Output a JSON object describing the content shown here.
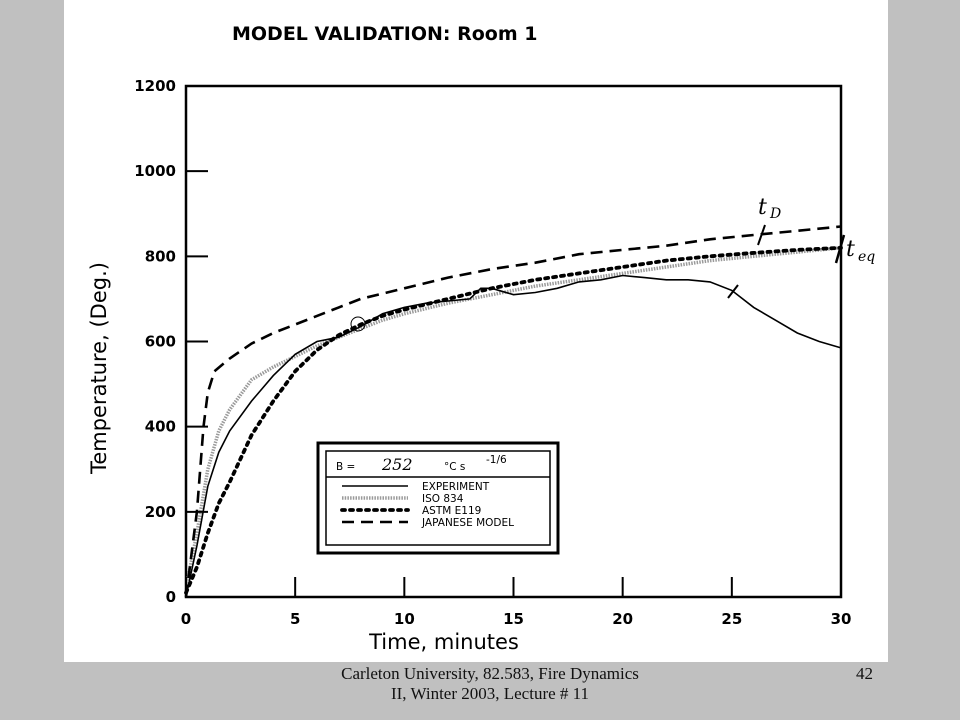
{
  "slide": {
    "footer": "Carleton University, 82.583, Fire Dynamics II, Winter 2003, Lecture # 11",
    "page_number": "42"
  },
  "chart_data": {
    "type": "line",
    "title": "MODEL VALIDATION:  Room 1",
    "xlabel": "Time, minutes",
    "ylabel": "Temperature, (Deg.)",
    "xlim": [
      0,
      30
    ],
    "ylim": [
      0,
      1200
    ],
    "xticks": [
      0,
      5,
      10,
      15,
      20,
      25,
      30
    ],
    "yticks": [
      0,
      200,
      400,
      600,
      800,
      1000,
      1200
    ],
    "grid": false,
    "legend_position": "lower-right",
    "legend_header": {
      "b_label": "B =",
      "b_value": "252",
      "b_unit": "°C s",
      "b_exponent": "-1/6"
    },
    "annotations": {
      "t_d": "t",
      "t_d_sub": "D",
      "t_eq": "t",
      "t_eq_sub": "eq"
    },
    "series": [
      {
        "name": "EXPERIMENT",
        "style": "solid",
        "x": [
          0,
          0.5,
          1,
          1.5,
          2,
          3,
          4,
          5,
          6,
          7,
          8,
          9,
          10,
          11,
          12,
          13,
          13.5,
          14,
          15,
          16,
          17,
          18,
          19,
          20,
          21,
          22,
          23,
          24,
          25,
          26,
          27,
          28,
          29,
          30
        ],
        "y": [
          0,
          120,
          260,
          340,
          390,
          460,
          520,
          570,
          600,
          610,
          635,
          665,
          680,
          690,
          695,
          700,
          725,
          725,
          710,
          715,
          725,
          740,
          745,
          755,
          750,
          745,
          745,
          740,
          720,
          680,
          650,
          620,
          600,
          585
        ]
      },
      {
        "name": "ISO 834",
        "style": "dotted-gray",
        "x": [
          0,
          0.5,
          1,
          1.5,
          2,
          3,
          4,
          5,
          6,
          7,
          8,
          9,
          10,
          12,
          14,
          16,
          18,
          20,
          22,
          24,
          26,
          28,
          30
        ],
        "y": [
          20,
          150,
          300,
          390,
          440,
          510,
          540,
          565,
          590,
          610,
          630,
          650,
          665,
          690,
          710,
          730,
          745,
          760,
          775,
          790,
          800,
          810,
          820
        ]
      },
      {
        "name": "ASTM E119",
        "style": "dotted-bold",
        "x": [
          0,
          0.5,
          1,
          1.5,
          2,
          3,
          4,
          5,
          6,
          7,
          8,
          9,
          10,
          12,
          14,
          16,
          18,
          20,
          22,
          24,
          26,
          28,
          30
        ],
        "y": [
          10,
          70,
          150,
          220,
          270,
          380,
          460,
          530,
          580,
          615,
          640,
          660,
          675,
          700,
          725,
          745,
          760,
          775,
          790,
          800,
          808,
          815,
          820
        ]
      },
      {
        "name": "JAPANESE MODEL",
        "style": "dashed",
        "x": [
          0,
          0.5,
          0.8,
          1,
          1.3,
          2,
          3,
          4,
          5,
          6,
          7,
          8,
          10,
          12,
          14,
          16,
          18,
          20,
          22,
          24,
          26,
          28,
          30
        ],
        "y": [
          0,
          200,
          400,
          480,
          530,
          560,
          595,
          620,
          640,
          660,
          680,
          700,
          725,
          750,
          770,
          785,
          805,
          815,
          825,
          840,
          850,
          860,
          870
        ]
      }
    ]
  }
}
